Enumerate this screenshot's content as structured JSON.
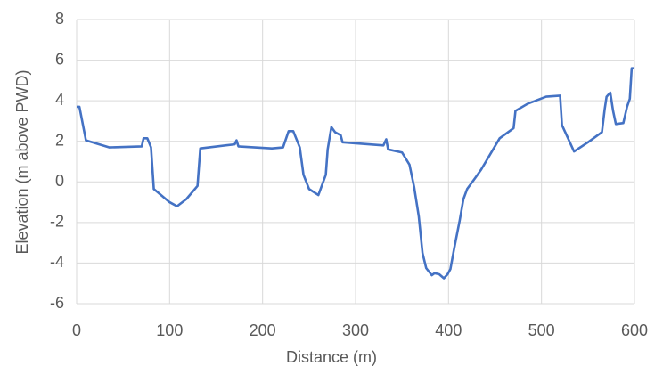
{
  "chart_data": {
    "type": "line",
    "x_label": "Distance (m)",
    "y_label": "Elevation (m above PWD)",
    "x": [
      0,
      3,
      10,
      35,
      70,
      72,
      76,
      80,
      83,
      100,
      108,
      118,
      130,
      133,
      170,
      172,
      174,
      210,
      222,
      228,
      233,
      240,
      244,
      250,
      260,
      268,
      270,
      274,
      278,
      284,
      286,
      330,
      333,
      335,
      350,
      358,
      363,
      368,
      372,
      376,
      382,
      385,
      390,
      395,
      399,
      402,
      406,
      412,
      416,
      420,
      428,
      435,
      455,
      470,
      472,
      485,
      505,
      520,
      522,
      535,
      550,
      565,
      568,
      570,
      574,
      577,
      580,
      588,
      592,
      595,
      597,
      600
    ],
    "series": [
      {
        "name": "Elevation",
        "color": "#4472c4",
        "values": [
          3.7,
          3.7,
          2.05,
          1.7,
          1.75,
          2.15,
          2.15,
          1.7,
          -0.35,
          -1.0,
          -1.2,
          -0.85,
          -0.2,
          1.65,
          1.85,
          2.05,
          1.75,
          1.65,
          1.7,
          2.5,
          2.5,
          1.7,
          0.35,
          -0.35,
          -0.65,
          0.35,
          1.6,
          2.7,
          2.45,
          2.3,
          1.95,
          1.8,
          2.1,
          1.6,
          1.45,
          0.85,
          -0.25,
          -1.7,
          -3.5,
          -4.25,
          -4.6,
          -4.5,
          -4.55,
          -4.75,
          -4.55,
          -4.3,
          -3.3,
          -1.9,
          -0.85,
          -0.35,
          0.15,
          0.6,
          2.15,
          2.65,
          3.5,
          3.85,
          4.2,
          4.25,
          2.8,
          1.5,
          1.95,
          2.45,
          3.6,
          4.2,
          4.4,
          3.5,
          2.85,
          2.9,
          3.7,
          4.1,
          5.6,
          5.6
        ]
      }
    ],
    "xlim": [
      0,
      600
    ],
    "xticks": [
      0,
      100,
      200,
      300,
      400,
      500,
      600
    ],
    "ylim": [
      -6,
      8
    ],
    "yticks": [
      -6,
      -4,
      -2,
      0,
      2,
      4,
      6,
      8
    ],
    "grid": true
  }
}
